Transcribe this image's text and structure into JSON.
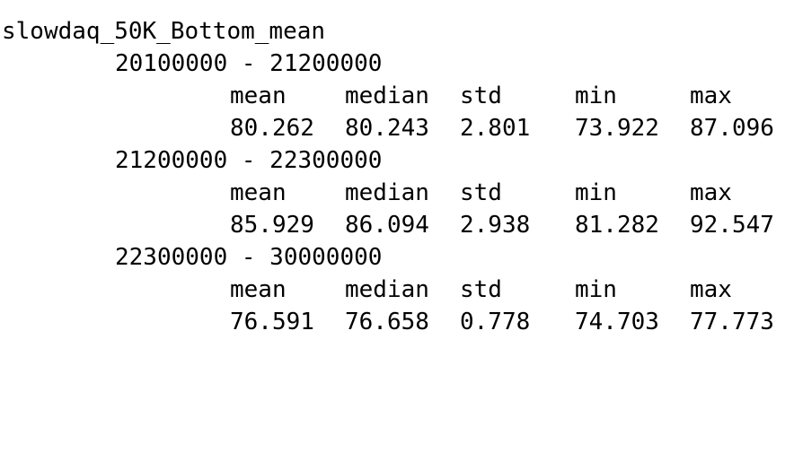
{
  "title": "slowdaq_50K_Bottom_mean",
  "columns": [
    "mean",
    "median",
    "std",
    "min",
    "max"
  ],
  "groups": [
    {
      "range": "20100000 - 21200000",
      "values": [
        "80.262",
        "80.243",
        "2.801",
        "73.922",
        "87.096"
      ]
    },
    {
      "range": "21200000 - 22300000",
      "values": [
        "85.929",
        "86.094",
        "2.938",
        "81.282",
        "92.547"
      ]
    },
    {
      "range": "22300000 - 30000000",
      "values": [
        "76.591",
        "76.658",
        "0.778",
        "74.703",
        "77.773"
      ]
    }
  ]
}
